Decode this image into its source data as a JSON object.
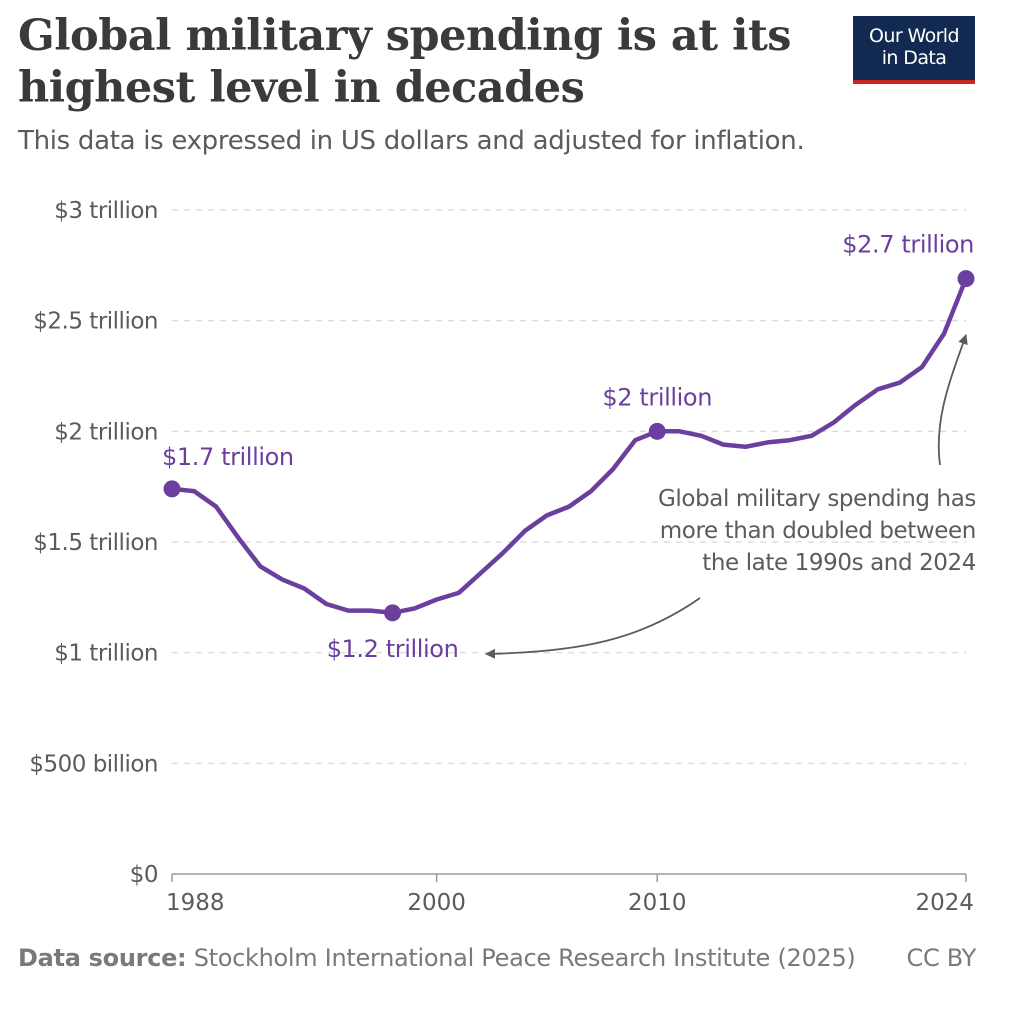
{
  "header": {
    "title_line1": "Global military spending is at its",
    "title_line2": "highest level in decades",
    "subtitle": "This data is expressed in US dollars and adjusted for inflation."
  },
  "logo": {
    "line1": "Our World",
    "line2": "in Data"
  },
  "footer": {
    "source_label": "Data source:",
    "source_text": "Stockholm International Peace Research Institute (2025)",
    "license": "CC BY"
  },
  "colors": {
    "series": "#6b3f9e",
    "axis_text": "#5b5b5b",
    "grid": "#dddddd",
    "annotation": "#5b5b5b",
    "logo_bg": "#122a52",
    "logo_accent": "#ce261e"
  },
  "chart_data": {
    "type": "line",
    "title": "Global military spending is at its highest level in decades",
    "subtitle": "This data is expressed in US dollars and adjusted for inflation.",
    "xlabel": "",
    "ylabel": "",
    "xlim": [
      1988,
      2024
    ],
    "ylim": [
      0,
      3
    ],
    "grid": true,
    "x_ticks": [
      1988,
      2000,
      2010,
      2024
    ],
    "x_tick_labels": [
      "1988",
      "2000",
      "2010",
      "2024"
    ],
    "y_ticks": [
      0,
      0.5,
      1,
      1.5,
      2,
      2.5,
      3
    ],
    "y_tick_labels": [
      "$0",
      "$500 billion",
      "$1 trillion",
      "$1.5 trillion",
      "$2 trillion",
      "$2.5 trillion",
      "$3 trillion"
    ],
    "series": [
      {
        "unit": "trillion US dollars",
        "x": [
          1988,
          1989,
          1990,
          1991,
          1992,
          1993,
          1994,
          1995,
          1996,
          1997,
          1998,
          1999,
          2000,
          2001,
          2002,
          2003,
          2004,
          2005,
          2006,
          2007,
          2008,
          2009,
          2010,
          2011,
          2012,
          2013,
          2014,
          2015,
          2016,
          2017,
          2018,
          2019,
          2020,
          2021,
          2022,
          2023,
          2024
        ],
        "y": [
          1.74,
          1.73,
          1.66,
          1.52,
          1.39,
          1.33,
          1.29,
          1.22,
          1.19,
          1.19,
          1.18,
          1.2,
          1.24,
          1.27,
          1.36,
          1.45,
          1.55,
          1.62,
          1.66,
          1.73,
          1.83,
          1.96,
          2.0,
          2.0,
          1.98,
          1.94,
          1.93,
          1.95,
          1.96,
          1.98,
          2.04,
          2.12,
          2.19,
          2.22,
          2.29,
          2.44,
          2.69
        ]
      }
    ],
    "highlighted_points": [
      {
        "x": 1988,
        "y": 1.74,
        "label": "$1.7 trillion"
      },
      {
        "x": 1998,
        "y": 1.18,
        "label": "$1.2 trillion"
      },
      {
        "x": 2010,
        "y": 2.0,
        "label": "$2 trillion"
      },
      {
        "x": 2024,
        "y": 2.69,
        "label": "$2.7 trillion"
      }
    ],
    "annotation": {
      "line1": "Global military spending has",
      "line2": "more than doubled between",
      "line3": "the late 1990s and 2024"
    }
  }
}
